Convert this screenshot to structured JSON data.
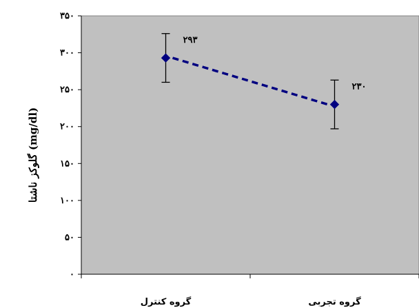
{
  "chart_data": {
    "type": "line",
    "categories": [
      "گروه کنترل",
      "گروه تجربی"
    ],
    "series": [
      {
        "values": [
          293,
          230
        ],
        "error": [
          33,
          33
        ]
      }
    ],
    "data_labels": [
      "۲۹۳",
      "۲۳۰"
    ],
    "title": "",
    "xlabel": "",
    "ylabel": "گلوکز ناشتا (mg/dl)",
    "ylim": [
      0,
      350
    ],
    "yticks": [
      0,
      50,
      100,
      150,
      200,
      250,
      300,
      350
    ],
    "ytick_labels": [
      "۰",
      "۵۰",
      "۱۰۰",
      "۱۵۰",
      "۲۰۰",
      "۲۵۰",
      "۳۰۰",
      "۳۵۰"
    ],
    "grid": false,
    "legend": false,
    "plot_background": "#c0c0c0",
    "series_color": "#000080",
    "line_style": "dashed"
  }
}
